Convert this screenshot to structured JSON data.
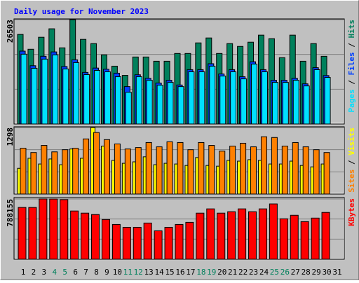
{
  "chart_data": {
    "type": "bar",
    "title": "Daily usage for November 2023",
    "categories": [
      "1",
      "2",
      "3",
      "4",
      "5",
      "6",
      "7",
      "8",
      "9",
      "10",
      "11",
      "12",
      "13",
      "14",
      "15",
      "16",
      "17",
      "18",
      "19",
      "20",
      "21",
      "22",
      "23",
      "24",
      "25",
      "26",
      "27",
      "28",
      "29",
      "30",
      "31"
    ],
    "category_colors": [
      "#000000",
      "#000000",
      "#000000",
      "#00805c",
      "#00805c",
      "#000000",
      "#000000",
      "#000000",
      "#000000",
      "#000000",
      "#00805c",
      "#00805c",
      "#000000",
      "#000000",
      "#000000",
      "#000000",
      "#000000",
      "#00805c",
      "#00805c",
      "#000000",
      "#000000",
      "#000000",
      "#000000",
      "#000000",
      "#00805c",
      "#00805c",
      "#000000",
      "#000000",
      "#000000",
      "#000000",
      "#000000"
    ],
    "legend_separator": " / ",
    "panels": [
      {
        "ylim": [
          0,
          26503
        ],
        "yticks": [
          26503
        ],
        "grid": true,
        "series": [
          {
            "name": "Hits",
            "color": "#00805c",
            "values": [
              22742,
              18982,
              22026,
              24175,
              19340,
              26503,
              21489,
              20415,
              17549,
              14684,
              12356,
              17012,
              17012,
              15937,
              15937,
              17907,
              17907,
              20593,
              21847,
              17907,
              20415,
              19698,
              20773,
              22563,
              21668,
              16833,
              22563,
              15937,
              20415,
              17191,
              null
            ]
          },
          {
            "name": "Files",
            "color": "#0040ff",
            "values": [
              18500,
              14800,
              17200,
              18300,
              14600,
              16300,
              13100,
              14200,
              13900,
              12900,
              9500,
              12500,
              11600,
              10400,
              11100,
              9900,
              13800,
              13800,
              15300,
              12700,
              13800,
              12000,
              15800,
              13800,
              11100,
              11100,
              11600,
              10200,
              14300,
              12300,
              null
            ]
          },
          {
            "name": "Pages",
            "color": "#00e0ff",
            "values": [
              17728,
              14147,
              16474,
              17549,
              13967,
              15579,
              12535,
              13609,
              13251,
              11998,
              8058,
              11998,
              11102,
              9849,
              10565,
              9491,
              13251,
              13251,
              14684,
              12177,
              13251,
              11460,
              15221,
              13251,
              10565,
              10565,
              11102,
              9670,
              13788,
              11819,
              null
            ]
          }
        ]
      },
      {
        "ylim": [
          0,
          1298
        ],
        "yticks": [
          1298
        ],
        "grid": true,
        "series": [
          {
            "name": "Visits",
            "color": "#ffff00",
            "values": [
              502,
              698,
              586,
              684,
              572,
              879,
              698,
              1298,
              935,
              656,
              600,
              628,
              726,
              572,
              600,
              586,
              558,
              712,
              558,
              544,
              656,
              642,
              670,
              656,
              586,
              586,
              642,
              558,
              530,
              586,
              null
            ]
          },
          {
            "name": "Sites",
            "color": "#ff8000",
            "values": [
              893,
              810,
              949,
              823,
              865,
              893,
              1075,
              1200,
              1061,
              977,
              879,
              907,
              1005,
              921,
              1019,
              1005,
              865,
              1005,
              949,
              837,
              935,
              991,
              921,
              1117,
              1103,
              935,
              1005,
              921,
              865,
              810,
              null
            ]
          }
        ]
      },
      {
        "ylim": [
          0,
          788155
        ],
        "yticks": [
          788155
        ],
        "grid": true,
        "series": [
          {
            "name": "KBytes",
            "color": "#ff0000",
            "values": [
              676885,
              676885,
              788155,
              787000,
              778882,
              630523,
              602706,
              584161,
              519254,
              454348,
              417258,
              417258,
              472892,
              370896,
              417258,
              454348,
              482165,
              602706,
              658340,
              602706,
              621251,
              658340,
              621251,
              658340,
              723247,
              528527,
              574889,
              491437,
              537799,
              611978,
              null
            ]
          }
        ]
      }
    ]
  }
}
